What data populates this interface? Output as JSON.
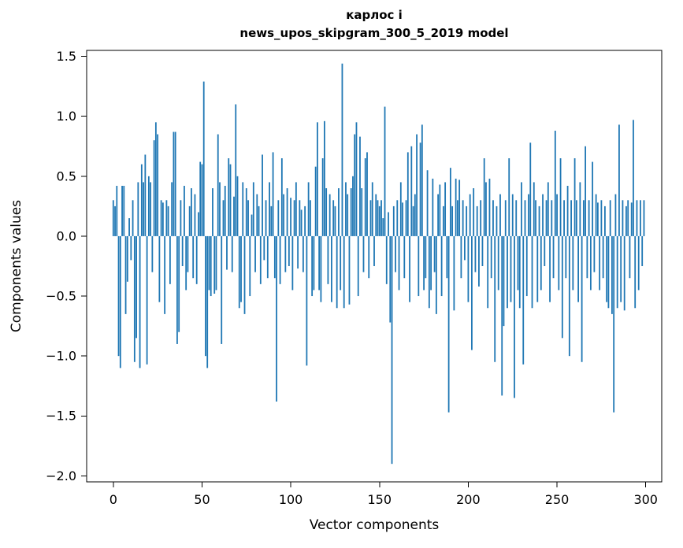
{
  "chart_data": {
    "type": "bar",
    "title": "карлос i",
    "subtitle": "news_upos_skipgram_300_5_2019 model",
    "xlabel": "Vector components",
    "ylabel": "Components values",
    "bar_color": "#1f77b4",
    "ylim": [
      -2.05,
      1.55
    ],
    "xlim": [
      -15,
      309
    ],
    "bar_width": 0.8,
    "yticks": [
      {
        "label": "1.5",
        "value": 1.5
      },
      {
        "label": "1.0",
        "value": 1.0
      },
      {
        "label": "0.5",
        "value": 0.5
      },
      {
        "label": "0.0",
        "value": 0.0
      },
      {
        "label": "−0.5",
        "value": -0.5
      },
      {
        "label": "−1.0",
        "value": -1.0
      },
      {
        "label": "−1.5",
        "value": -1.5
      },
      {
        "label": "−2.0",
        "value": -2.0
      }
    ],
    "xticks": [
      {
        "label": "0",
        "value": 0
      },
      {
        "label": "50",
        "value": 50
      },
      {
        "label": "100",
        "value": 100
      },
      {
        "label": "150",
        "value": 150
      },
      {
        "label": "200",
        "value": 200
      },
      {
        "label": "250",
        "value": 250
      },
      {
        "label": "300",
        "value": 300
      }
    ],
    "values": [
      0.3,
      0.25,
      0.42,
      -1.0,
      -1.1,
      0.42,
      0.42,
      -0.65,
      -0.38,
      0.15,
      -0.2,
      0.3,
      -1.05,
      -0.85,
      0.45,
      -1.1,
      0.6,
      0.45,
      0.68,
      -1.07,
      0.5,
      0.45,
      -0.3,
      0.8,
      0.95,
      0.85,
      -0.55,
      0.3,
      0.28,
      -0.65,
      0.3,
      0.25,
      -0.4,
      0.45,
      0.87,
      0.87,
      -0.9,
      -0.8,
      0.3,
      -0.25,
      0.42,
      -0.45,
      -0.3,
      0.25,
      0.4,
      -0.35,
      0.35,
      -0.4,
      0.2,
      0.62,
      0.6,
      1.29,
      -1.0,
      -1.1,
      -0.45,
      -0.5,
      0.4,
      -0.48,
      -0.45,
      0.85,
      0.45,
      -0.9,
      0.3,
      0.42,
      -0.28,
      0.65,
      0.6,
      -0.3,
      0.33,
      1.1,
      0.5,
      -0.6,
      -0.55,
      0.45,
      -0.65,
      0.4,
      0.3,
      -0.5,
      0.18,
      0.45,
      -0.3,
      0.35,
      0.25,
      -0.4,
      0.68,
      -0.2,
      0.3,
      -0.35,
      0.45,
      0.25,
      0.7,
      -0.35,
      -1.38,
      0.3,
      -0.4,
      0.65,
      0.35,
      -0.3,
      0.4,
      -0.25,
      0.32,
      -0.45,
      0.3,
      0.45,
      -0.27,
      0.3,
      0.22,
      -0.3,
      0.25,
      -1.08,
      0.45,
      0.3,
      -0.5,
      -0.45,
      0.58,
      0.95,
      -0.45,
      -0.55,
      0.65,
      0.96,
      0.4,
      -0.4,
      0.35,
      -0.55,
      0.3,
      0.25,
      -0.6,
      0.4,
      -0.45,
      1.44,
      -0.6,
      0.45,
      0.35,
      -0.57,
      0.4,
      0.5,
      0.85,
      0.95,
      -0.5,
      0.83,
      0.4,
      -0.3,
      0.65,
      0.7,
      -0.35,
      0.3,
      0.45,
      -0.25,
      0.35,
      0.3,
      0.25,
      0.3,
      0.15,
      1.08,
      -0.4,
      0.2,
      -0.72,
      -1.9,
      0.25,
      -0.3,
      0.3,
      -0.45,
      0.45,
      0.28,
      -0.35,
      0.3,
      0.7,
      -0.55,
      0.75,
      0.25,
      0.35,
      0.85,
      -0.5,
      0.78,
      0.93,
      -0.45,
      -0.35,
      0.55,
      -0.6,
      -0.45,
      0.48,
      -0.3,
      -0.65,
      0.35,
      0.43,
      -0.5,
      0.25,
      0.45,
      -0.35,
      -1.47,
      0.57,
      0.25,
      -0.62,
      0.48,
      0.3,
      0.47,
      -0.35,
      0.3,
      -0.2,
      0.25,
      -0.55,
      0.35,
      -0.95,
      0.4,
      -0.3,
      0.25,
      -0.42,
      0.3,
      -0.25,
      0.65,
      0.45,
      -0.6,
      0.48,
      -0.35,
      0.3,
      -1.05,
      0.25,
      -0.45,
      0.35,
      -1.33,
      -0.75,
      0.3,
      -0.6,
      0.65,
      -0.55,
      0.35,
      -1.35,
      0.3,
      -0.45,
      -0.6,
      0.45,
      -1.07,
      0.3,
      -0.5,
      0.35,
      0.78,
      -0.6,
      0.45,
      0.3,
      -0.55,
      0.25,
      -0.45,
      0.35,
      -0.25,
      0.3,
      0.45,
      -0.55,
      0.3,
      -0.35,
      0.88,
      0.35,
      -0.45,
      0.65,
      -0.85,
      0.3,
      -0.35,
      0.42,
      -1.0,
      0.3,
      -0.45,
      0.65,
      0.3,
      -0.55,
      0.45,
      -1.05,
      0.3,
      0.75,
      -0.35,
      0.3,
      -0.45,
      0.62,
      -0.3,
      0.35,
      0.28,
      -0.45,
      0.3,
      -0.35,
      0.25,
      -0.55,
      -0.6,
      0.3,
      -0.65,
      -1.47,
      0.35,
      -0.6,
      0.93,
      -0.55,
      0.3,
      -0.62,
      0.25,
      0.3,
      -0.35,
      0.28,
      0.97,
      -0.6,
      0.3,
      -0.45,
      0.3,
      -0.25,
      0.3
    ]
  }
}
